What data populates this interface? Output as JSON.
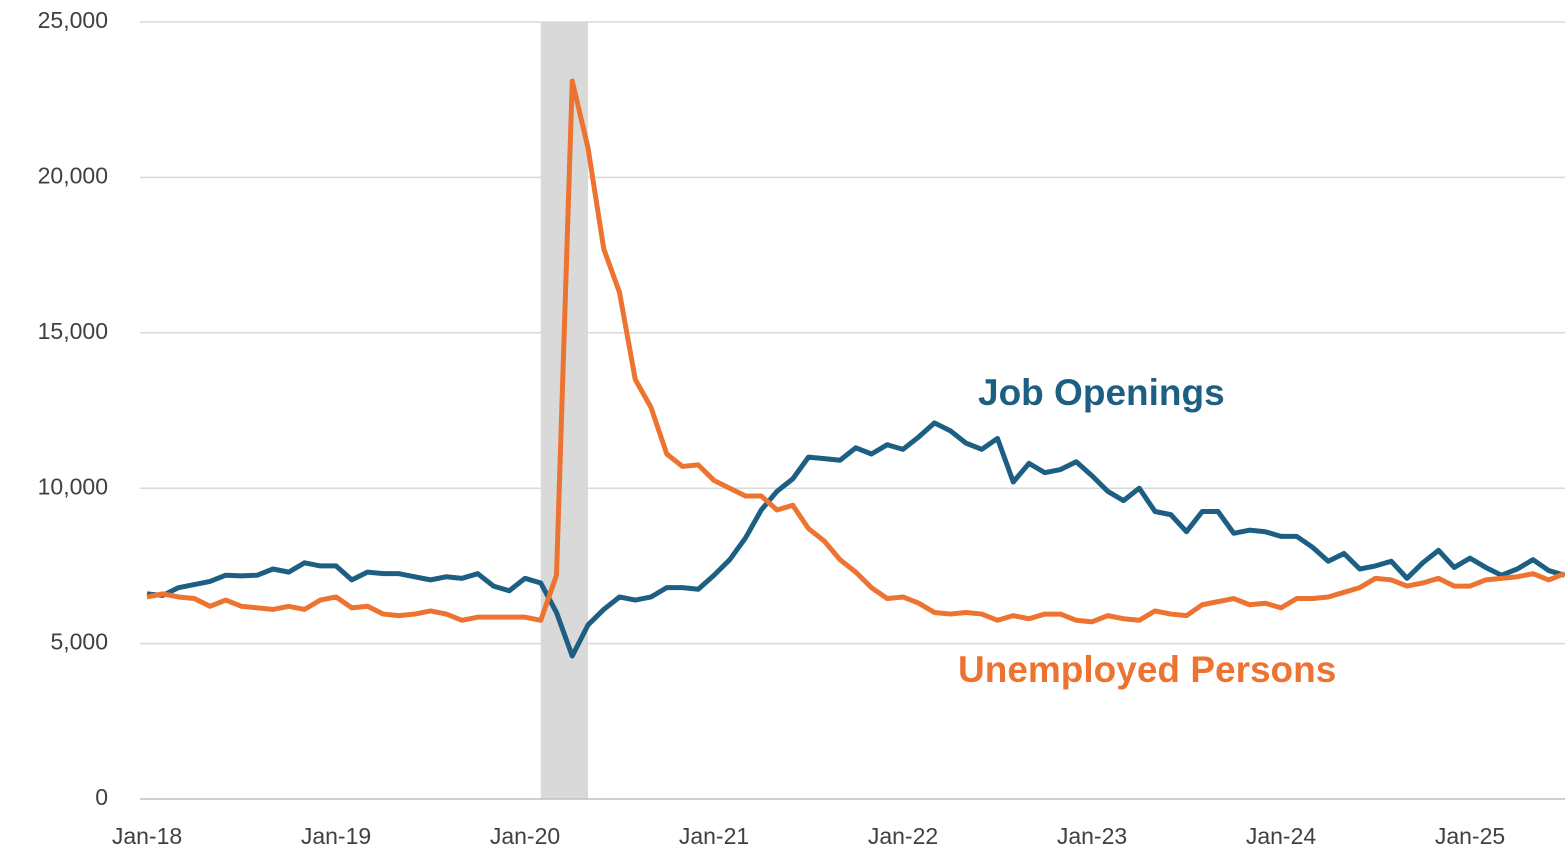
{
  "chart_data": {
    "type": "line",
    "categories": [
      "Jan-18",
      null,
      null,
      null,
      null,
      null,
      null,
      null,
      null,
      null,
      null,
      null,
      "Jan-19",
      null,
      null,
      null,
      null,
      null,
      null,
      null,
      null,
      null,
      null,
      null,
      "Jan-20",
      null,
      null,
      null,
      null,
      null,
      null,
      null,
      null,
      null,
      null,
      null,
      "Jan-21",
      null,
      null,
      null,
      null,
      null,
      null,
      null,
      null,
      null,
      null,
      null,
      "Jan-22",
      null,
      null,
      null,
      null,
      null,
      null,
      null,
      null,
      null,
      null,
      null,
      "Jan-23",
      null,
      null,
      null,
      null,
      null,
      null,
      null,
      null,
      null,
      null,
      null,
      "Jan-24",
      null,
      null,
      null,
      null,
      null,
      null,
      null,
      null,
      null,
      null,
      null,
      "Jan-25",
      null,
      null,
      null,
      null,
      null,
      null
    ],
    "series": [
      {
        "name": "Job Openings",
        "color": "#1d5f82",
        "values": [
          6600,
          6550,
          6800,
          6900,
          7000,
          7200,
          7180,
          7200,
          7400,
          7300,
          7600,
          7500,
          7500,
          7050,
          7300,
          7250,
          7250,
          7150,
          7050,
          7150,
          7100,
          7250,
          6850,
          6700,
          7100,
          6950,
          6000,
          4600,
          5600,
          6100,
          6500,
          6400,
          6500,
          6800,
          6800,
          6750,
          7200,
          7700,
          8400,
          9300,
          9900,
          10300,
          11000,
          10950,
          10900,
          11300,
          11100,
          11400,
          11250,
          11650,
          12100,
          11850,
          11450,
          11250,
          11600,
          10200,
          10800,
          10500,
          10600,
          10850,
          10400,
          9900,
          9600,
          10000,
          9250,
          9150,
          8600,
          9250,
          9250,
          8550,
          8650,
          8600,
          8450,
          8450,
          8100,
          7650,
          7900,
          7400,
          7500,
          7650,
          7100,
          7600,
          8000,
          7450,
          7750,
          7450,
          7200,
          7400,
          7700,
          7350,
          7200
        ]
      },
      {
        "name": "Unemployed Persons",
        "color": "#ed7331",
        "values": [
          6500,
          6600,
          6500,
          6450,
          6200,
          6400,
          6200,
          6150,
          6100,
          6200,
          6100,
          6400,
          6500,
          6150,
          6200,
          5950,
          5900,
          5950,
          6050,
          5950,
          5750,
          5850,
          5850,
          5850,
          5850,
          5750,
          7200,
          23100,
          20950,
          17700,
          16300,
          13500,
          12600,
          11100,
          10700,
          10750,
          10250,
          10000,
          9750,
          9750,
          9300,
          9450,
          8700,
          8300,
          7700,
          7300,
          6800,
          6450,
          6500,
          6300,
          6000,
          5950,
          6000,
          5950,
          5750,
          5900,
          5800,
          5950,
          5950,
          5750,
          5700,
          5900,
          5800,
          5750,
          6050,
          5950,
          5900,
          6250,
          6350,
          6450,
          6250,
          6300,
          6150,
          6450,
          6450,
          6500,
          6650,
          6800,
          7100,
          7050,
          6850,
          6950,
          7100,
          6850,
          6850,
          7050,
          7100,
          7150,
          7250,
          7050,
          7250
        ]
      }
    ],
    "ylim": [
      0,
      25000
    ],
    "yticks": [
      0,
      {
        "value": 5000,
        "label": "5,000"
      },
      {
        "value": 10000,
        "label": "10,000"
      },
      {
        "value": 15000,
        "label": "15,000"
      },
      {
        "value": 20000,
        "label": "20,000"
      },
      {
        "value": 25000,
        "label": "25,000"
      }
    ],
    "grid": true,
    "shaded_range": [
      25,
      28
    ],
    "shade_color": "#d9d9d9"
  }
}
